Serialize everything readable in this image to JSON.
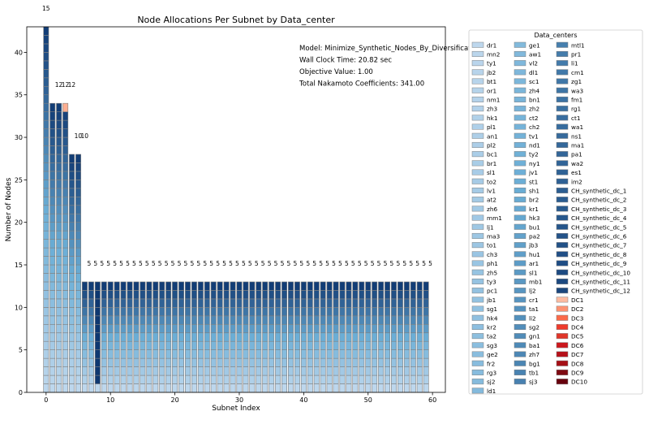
{
  "chart_data": {
    "type": "bar",
    "stacked": true,
    "title": "Node Allocations Per Subnet by Data_center",
    "xlabel": "Subnet Index",
    "ylabel": "Number of Nodes",
    "xlim": [
      -3,
      62
    ],
    "ylim": [
      0,
      43
    ],
    "xticks": [
      0,
      10,
      20,
      30,
      40,
      50,
      60
    ],
    "yticks": [
      0,
      5,
      10,
      15,
      20,
      25,
      30,
      35,
      40
    ],
    "grid": false,
    "subnets": [
      {
        "index": 0,
        "total": 43,
        "label": "15"
      },
      {
        "index": 1,
        "total": 34,
        "label": "12"
      },
      {
        "index": 2,
        "total": 34,
        "label": "12"
      },
      {
        "index": 3,
        "total": 34,
        "label": "12"
      },
      {
        "index": 4,
        "total": 28,
        "label": "10"
      },
      {
        "index": 5,
        "total": 28,
        "label": "10"
      },
      {
        "index": 6,
        "total": 13,
        "label": "5"
      },
      {
        "index": 7,
        "total": 13,
        "label": "5"
      },
      {
        "index": 8,
        "total": 13,
        "label": "5"
      },
      {
        "index": 9,
        "total": 13,
        "label": "5"
      },
      {
        "index": 10,
        "total": 13,
        "label": "5"
      },
      {
        "index": 11,
        "total": 13,
        "label": "5"
      },
      {
        "index": 12,
        "total": 13,
        "label": "5"
      },
      {
        "index": 13,
        "total": 13,
        "label": "5"
      },
      {
        "index": 14,
        "total": 13,
        "label": "5"
      },
      {
        "index": 15,
        "total": 13,
        "label": "5"
      },
      {
        "index": 16,
        "total": 13,
        "label": "5"
      },
      {
        "index": 17,
        "total": 13,
        "label": "5"
      },
      {
        "index": 18,
        "total": 13,
        "label": "5"
      },
      {
        "index": 19,
        "total": 13,
        "label": "5"
      },
      {
        "index": 20,
        "total": 13,
        "label": "5"
      },
      {
        "index": 21,
        "total": 13,
        "label": "5"
      },
      {
        "index": 22,
        "total": 13,
        "label": "5"
      },
      {
        "index": 23,
        "total": 13,
        "label": "5"
      },
      {
        "index": 24,
        "total": 13,
        "label": "5"
      },
      {
        "index": 25,
        "total": 13,
        "label": "5"
      },
      {
        "index": 26,
        "total": 13,
        "label": "5"
      },
      {
        "index": 27,
        "total": 13,
        "label": "5"
      },
      {
        "index": 28,
        "total": 13,
        "label": "5"
      },
      {
        "index": 29,
        "total": 13,
        "label": "5"
      },
      {
        "index": 30,
        "total": 13,
        "label": "5"
      },
      {
        "index": 31,
        "total": 13,
        "label": "5"
      },
      {
        "index": 32,
        "total": 13,
        "label": "5"
      },
      {
        "index": 33,
        "total": 13,
        "label": "5"
      },
      {
        "index": 34,
        "total": 13,
        "label": "5"
      },
      {
        "index": 35,
        "total": 13,
        "label": "5"
      },
      {
        "index": 36,
        "total": 13,
        "label": "5"
      },
      {
        "index": 37,
        "total": 13,
        "label": "5"
      },
      {
        "index": 38,
        "total": 13,
        "label": "5"
      },
      {
        "index": 39,
        "total": 13,
        "label": "5"
      },
      {
        "index": 40,
        "total": 13,
        "label": "5"
      },
      {
        "index": 41,
        "total": 13,
        "label": "5"
      },
      {
        "index": 42,
        "total": 13,
        "label": "5"
      },
      {
        "index": 43,
        "total": 13,
        "label": "5"
      },
      {
        "index": 44,
        "total": 13,
        "label": "5"
      },
      {
        "index": 45,
        "total": 13,
        "label": "5"
      },
      {
        "index": 46,
        "total": 13,
        "label": "5"
      },
      {
        "index": 47,
        "total": 13,
        "label": "5"
      },
      {
        "index": 48,
        "total": 13,
        "label": "5"
      },
      {
        "index": 49,
        "total": 13,
        "label": "5"
      },
      {
        "index": 50,
        "total": 13,
        "label": "5"
      },
      {
        "index": 51,
        "total": 13,
        "label": "5"
      },
      {
        "index": 52,
        "total": 13,
        "label": "5"
      },
      {
        "index": 53,
        "total": 13,
        "label": "5"
      },
      {
        "index": 54,
        "total": 13,
        "label": "5"
      },
      {
        "index": 55,
        "total": 13,
        "label": "5"
      },
      {
        "index": 56,
        "total": 13,
        "label": "5"
      },
      {
        "index": 57,
        "total": 13,
        "label": "5"
      },
      {
        "index": 58,
        "total": 13,
        "label": "5"
      },
      {
        "index": 59,
        "total": 13,
        "label": "5"
      }
    ],
    "annotations": [
      "Model: Minimize_Synthetic_Nodes_By_Diversification_Tar",
      "Wall Clock Time: 20.82 sec",
      "Objective Value: 1.00",
      "Total Nakamoto Coefficients: 341.00"
    ],
    "legend": {
      "title": "Data_centers",
      "placement": "right",
      "columns": [
        [
          "dr1",
          "mn2",
          "ty1",
          "jb2",
          "bt1",
          "or1",
          "nm1",
          "zh3",
          "hk1",
          "pl1",
          "an1",
          "pl2",
          "bc1",
          "br1",
          "sl1",
          "to2",
          "lv1",
          "at2",
          "zh6",
          "mm1",
          "lj1",
          "ma3",
          "to1",
          "ch3",
          "ph1",
          "zh5",
          "ty3",
          "pc1",
          "jb1",
          "sg1",
          "hk4",
          "kr2",
          "ta2",
          "sg3",
          "ge2",
          "fr2",
          "rg3",
          "sj2",
          "ld1"
        ],
        [
          "ge1",
          "aw1",
          "vl2",
          "dl1",
          "sc1",
          "zh4",
          "bn1",
          "zh2",
          "ct2",
          "ch2",
          "tv1",
          "nd1",
          "ty2",
          "ny1",
          "jv1",
          "st1",
          "sh1",
          "br2",
          "kr1",
          "hk3",
          "bu1",
          "pa2",
          "jb3",
          "hu1",
          "ar1",
          "sl1",
          "mb1",
          "lj2",
          "cr1",
          "ta1",
          "li2",
          "sg2",
          "gn1",
          "ba1",
          "zh7",
          "bg1",
          "tb1",
          "sj3"
        ],
        [
          "mtl1",
          "pr1",
          "li1",
          "cm1",
          "zg1",
          "wa3",
          "fm1",
          "rg1",
          "ct1",
          "wa1",
          "ns1",
          "ma1",
          "pa1",
          "wa2",
          "es1",
          "im2",
          "CH_synthetic_dc_1",
          "CH_synthetic_dc_2",
          "CH_synthetic_dc_3",
          "CH_synthetic_dc_4",
          "CH_synthetic_dc_5",
          "CH_synthetic_dc_6",
          "CH_synthetic_dc_7",
          "CH_synthetic_dc_8",
          "CH_synthetic_dc_9",
          "CH_synthetic_dc_10",
          "CH_synthetic_dc_11",
          "CH_synthetic_dc_12",
          "DC1",
          "DC2",
          "DC3",
          "DC4",
          "DC5",
          "DC6",
          "DC7",
          "DC8",
          "DC9",
          "DC10"
        ]
      ],
      "colors": {
        "blues_light": "#c6dbef",
        "blues_mid": "#6baed6",
        "blues_dark": "#08306b",
        "reds": [
          "#fcbba1",
          "#fc9272",
          "#fb6a4a",
          "#ef3b2c",
          "#e0362a",
          "#cb181d",
          "#b5121b",
          "#a50f15",
          "#7f0a12",
          "#67000d"
        ]
      }
    },
    "colors": {
      "edge": "#808080",
      "highlight": "#fcae91"
    }
  }
}
